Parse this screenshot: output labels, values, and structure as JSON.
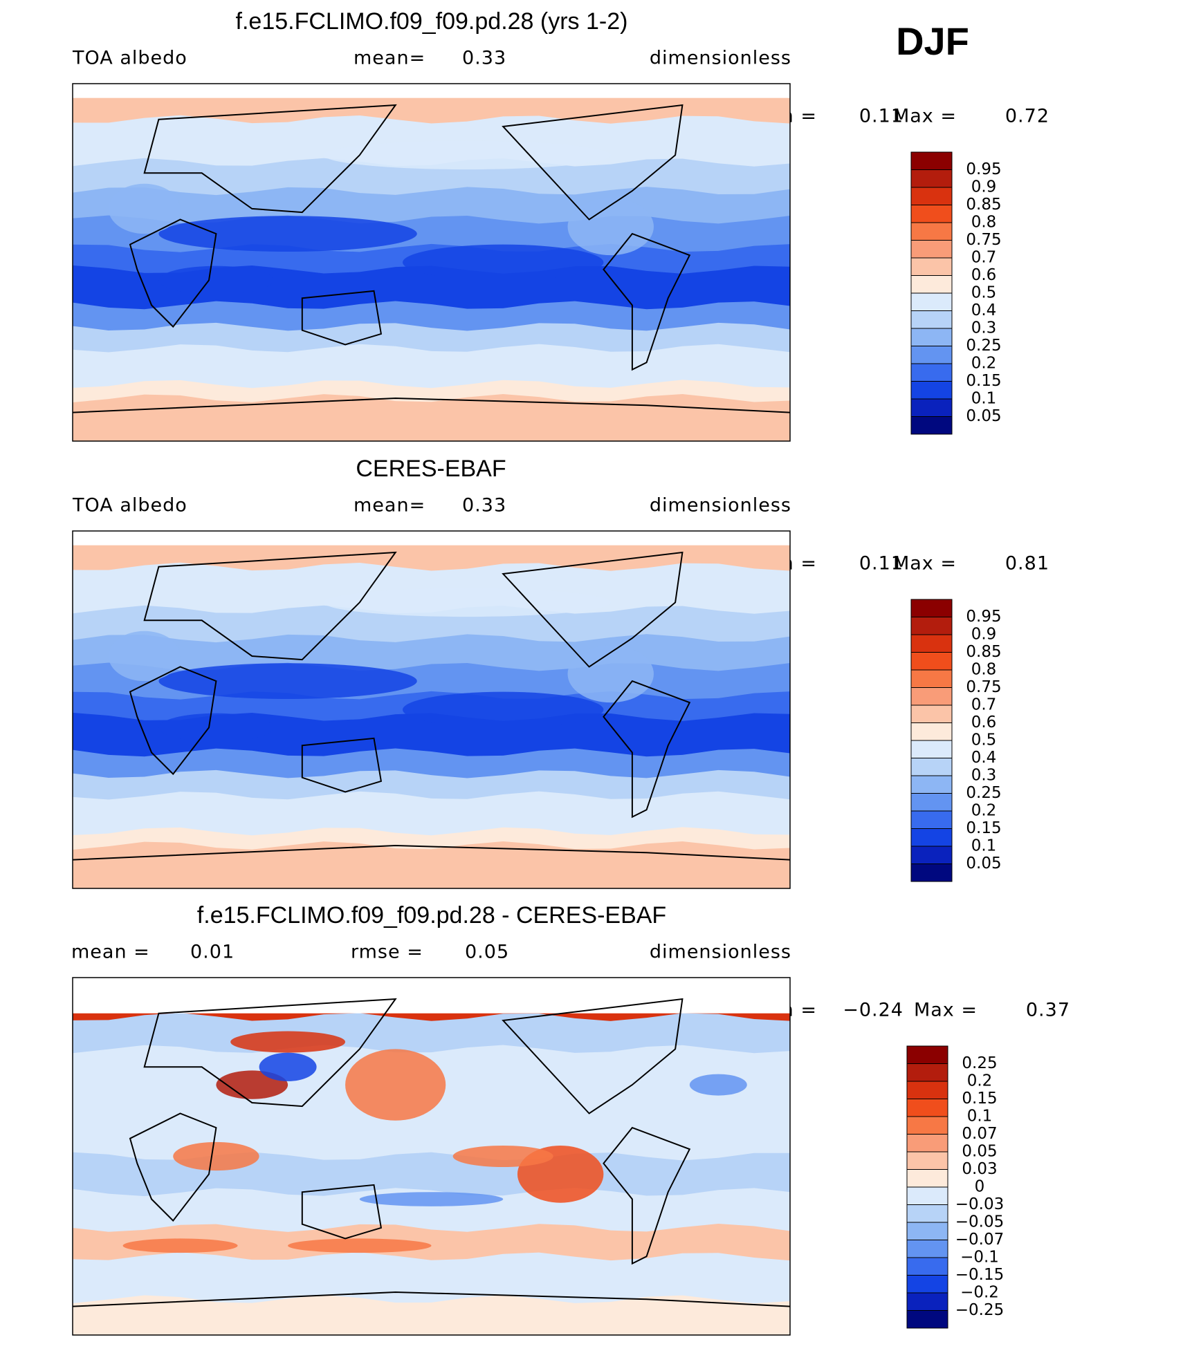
{
  "header": "DJF",
  "panels": [
    {
      "title": "f.e15.FCLIMO.f09_f09.pd.28 (yrs 1-2)",
      "subtitle": [
        "TOA albedo",
        "mean=",
        "0.33",
        "dimensionless"
      ],
      "stats": [
        "Min =",
        "0.11",
        "Max =",
        "0.72"
      ],
      "colorbar": {
        "labels": [
          "0.95",
          "0.9",
          "0.85",
          "0.8",
          "0.75",
          "0.7",
          "0.6",
          "0.5",
          "0.4",
          "0.3",
          "0.25",
          "0.2",
          "0.15",
          "0.1",
          "0.05"
        ],
        "colors": [
          "#8b0000",
          "#b31d0d",
          "#d9320f",
          "#f04e1c",
          "#f77845",
          "#f99c78",
          "#fbc4a8",
          "#fdeadb",
          "#dbeafb",
          "#b7d3f7",
          "#8db6f4",
          "#6394f1",
          "#386bee",
          "#1444e4",
          "#0a22bd",
          "#00087f"
        ]
      }
    },
    {
      "title": "CERES-EBAF",
      "subtitle": [
        "TOA albedo",
        "mean=",
        "0.33",
        "dimensionless"
      ],
      "stats": [
        "Min =",
        "0.11",
        "Max =",
        "0.81"
      ],
      "colorbar": {
        "labels": [
          "0.95",
          "0.9",
          "0.85",
          "0.8",
          "0.75",
          "0.7",
          "0.6",
          "0.5",
          "0.4",
          "0.3",
          "0.25",
          "0.2",
          "0.15",
          "0.1",
          "0.05"
        ],
        "colors": [
          "#8b0000",
          "#b31d0d",
          "#d9320f",
          "#f04e1c",
          "#f77845",
          "#f99c78",
          "#fbc4a8",
          "#fdeadb",
          "#dbeafb",
          "#b7d3f7",
          "#8db6f4",
          "#6394f1",
          "#386bee",
          "#1444e4",
          "#0a22bd",
          "#00087f"
        ]
      }
    },
    {
      "title": "f.e15.FCLIMO.f09_f09.pd.28 - CERES-EBAF",
      "subtitle": [
        "mean =",
        "0.01",
        "rmse =",
        "0.05",
        "dimensionless"
      ],
      "stats": [
        "Min =",
        "−0.24",
        "Max =",
        "0.37"
      ],
      "colorbar": {
        "labels": [
          "0.25",
          "0.2",
          "0.15",
          "0.1",
          "0.07",
          "0.05",
          "0.03",
          "0",
          "−0.03",
          "−0.05",
          "−0.07",
          "−0.1",
          "−0.15",
          "−0.2",
          "−0.25"
        ],
        "colors": [
          "#8b0000",
          "#b31d0d",
          "#d9320f",
          "#f04e1c",
          "#f77845",
          "#f99c78",
          "#fbc4a8",
          "#fdeadb",
          "#dbeafb",
          "#b7d3f7",
          "#8db6f4",
          "#6394f1",
          "#386bee",
          "#1444e4",
          "#0a22bd",
          "#00087f"
        ]
      }
    }
  ]
}
